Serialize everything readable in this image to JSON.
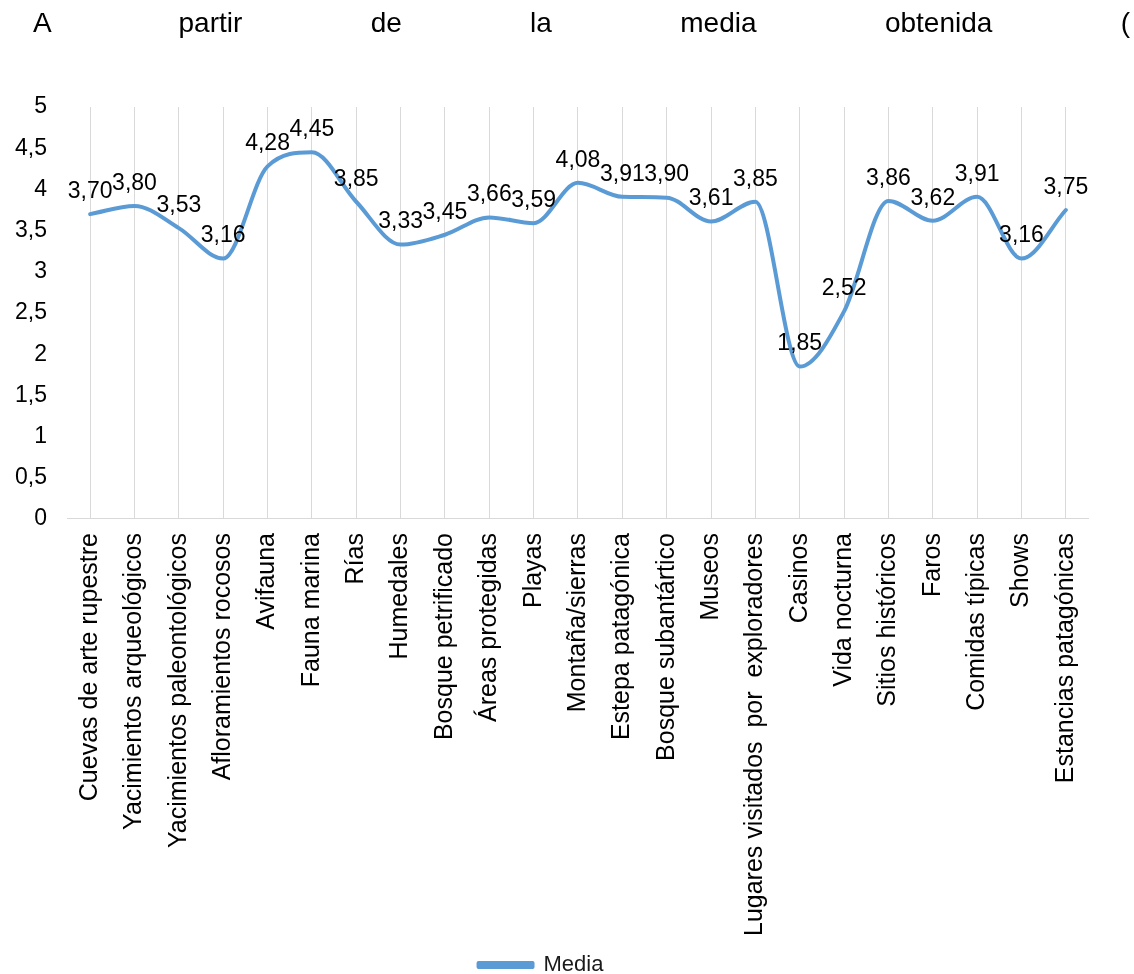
{
  "chart_data": {
    "type": "line",
    "title": "A partir de la media obtenida (",
    "categories": [
      "Cuevas de arte rupestre",
      "Yacimientos arqueológicos",
      "Yacimientos paleontológicos",
      "Afloramientos rocosos",
      "Avifauna",
      "Fauna marina",
      "Rías",
      "Humedales",
      "Bosque petrificado",
      "Áreas protegidas",
      "Playas",
      "Montaña/sierras",
      "Estepa patagónica",
      "Bosque subantártico",
      "Museos",
      "Lugares visitados  por  exploradores",
      "Casinos",
      "Vida nocturna",
      "Sitios históricos",
      "Faros",
      "Comidas típicas",
      "Shows",
      "Estancias patagónicas"
    ],
    "series": [
      {
        "name": "Media",
        "color": "#5b9bd5",
        "values": [
          3.7,
          3.8,
          3.53,
          3.16,
          4.28,
          4.45,
          3.85,
          3.33,
          3.45,
          3.66,
          3.59,
          4.08,
          3.91,
          3.9,
          3.61,
          3.85,
          1.85,
          2.52,
          3.86,
          3.62,
          3.91,
          3.16,
          3.75
        ],
        "value_labels": [
          "3,70",
          "3,80",
          "3,53",
          "3,16",
          "4,28",
          "4,45",
          "3,85",
          "3,33",
          "3,45",
          "3,66",
          "3,59",
          "4,08",
          "3,91",
          "3,90",
          "3,61",
          "3,85",
          "1,85",
          "2,52",
          "3,86",
          "3,62",
          "3,91",
          "3,16",
          "3,75"
        ]
      }
    ],
    "ylim": [
      0,
      5
    ],
    "yticks": [
      0,
      {
        "value": 0.5,
        "label": "0,5"
      },
      1,
      {
        "value": 1.5,
        "label": "1,5"
      },
      2,
      {
        "value": 2.5,
        "label": "2,5"
      },
      3,
      {
        "value": 3.5,
        "label": "3,5"
      },
      4,
      {
        "value": 4.5,
        "label": "4,5"
      },
      5
    ],
    "grid": "x",
    "legend": "bottom",
    "marker": "none",
    "line_style": "solid"
  }
}
